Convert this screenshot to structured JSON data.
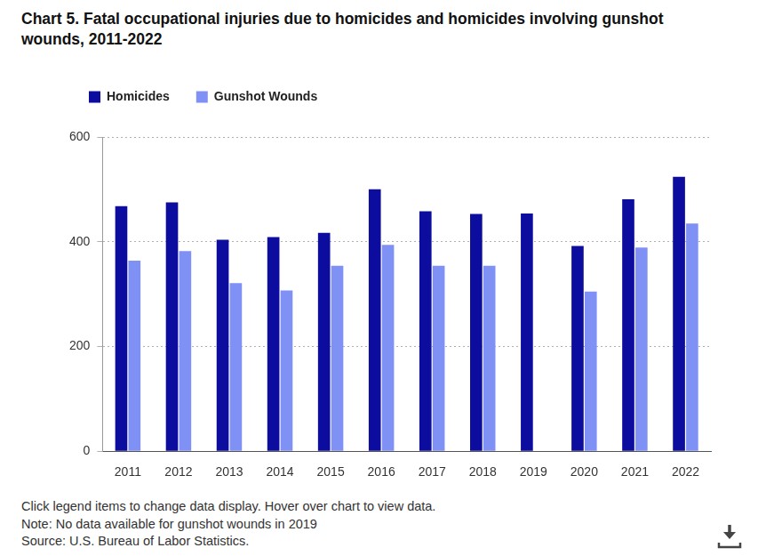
{
  "chart_data": {
    "type": "bar",
    "title": "Chart 5. Fatal occupational injuries due to homicides and homicides involving gunshot wounds, 2011-2022",
    "categories": [
      "2011",
      "2012",
      "2013",
      "2014",
      "2015",
      "2016",
      "2017",
      "2018",
      "2019",
      "2020",
      "2021",
      "2022"
    ],
    "series": [
      {
        "name": "Homicides",
        "color": "#0c0c9e",
        "values": [
          468,
          475,
          404,
          409,
          417,
          500,
          458,
          453,
          454,
          392,
          481,
          524
        ]
      },
      {
        "name": "Gunshot Wounds",
        "color": "#8091f6",
        "values": [
          364,
          382,
          321,
          307,
          354,
          394,
          354,
          354,
          null,
          305,
          389,
          435
        ]
      }
    ],
    "ylim": [
      0,
      600
    ],
    "yticks": [
      0,
      200,
      400,
      600
    ],
    "grid": true,
    "legend": "top",
    "annotations": [
      "Click legend items to change data display. Hover over chart to view data.",
      "Note: No data available for gunshot wounds in 2019",
      "Source: U.S. Bureau of Labor Statistics."
    ]
  }
}
